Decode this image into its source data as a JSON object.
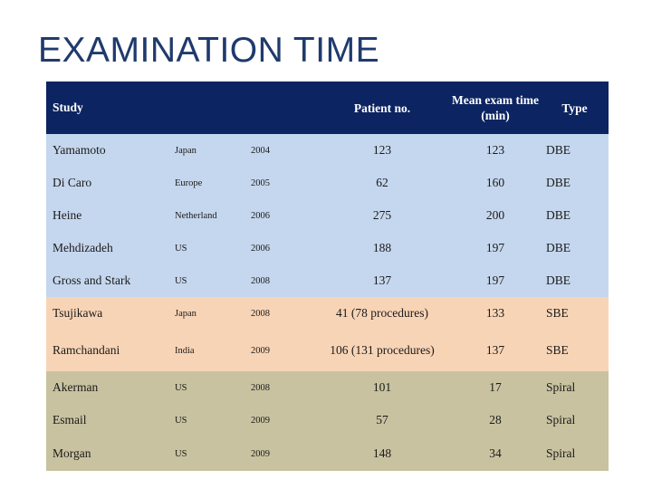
{
  "slide": {
    "title": "EXAMINATION TIME"
  },
  "table": {
    "headers": {
      "study": "Study",
      "patient_no": "Patient no.",
      "mean_exam_time": "Mean exam time (min)",
      "type": "Type"
    },
    "rows": [
      {
        "study": "Yamamoto",
        "country": "Japan",
        "year": "2004",
        "patients": "123",
        "mean_time": "123",
        "type": "DBE",
        "group": "dbe"
      },
      {
        "study": "Di Caro",
        "country": "Europe",
        "year": "2005",
        "patients": "62",
        "mean_time": "160",
        "type": "DBE",
        "group": "dbe"
      },
      {
        "study": "Heine",
        "country": "Netherland",
        "year": "2006",
        "patients": "275",
        "mean_time": "200",
        "type": "DBE",
        "group": "dbe"
      },
      {
        "study": "Mehdizadeh",
        "country": "US",
        "year": "2006",
        "patients": "188",
        "mean_time": "197",
        "type": "DBE",
        "group": "dbe"
      },
      {
        "study": "Gross and Stark",
        "country": "US",
        "year": "2008",
        "patients": "137",
        "mean_time": "197",
        "type": "DBE",
        "group": "dbe"
      },
      {
        "study": "Tsujikawa",
        "country": "Japan",
        "year": "2008",
        "patients": "41 (78 procedures)",
        "mean_time": "133",
        "type": "SBE",
        "group": "sbe"
      },
      {
        "study": "Ramchandani",
        "country": "India",
        "year": "2009",
        "patients": "106 (131 procedures)",
        "mean_time": "137",
        "type": "SBE",
        "group": "sbe"
      },
      {
        "study": "Akerman",
        "country": "US",
        "year": "2008",
        "patients": "101",
        "mean_time": "17",
        "type": "Spiral",
        "group": "spiral"
      },
      {
        "study": "Esmail",
        "country": "US",
        "year": "2009",
        "patients": "57",
        "mean_time": "28",
        "type": "Spiral",
        "group": "spiral"
      },
      {
        "study": "Morgan",
        "country": "US",
        "year": "2009",
        "patients": "148",
        "mean_time": "34",
        "type": "Spiral",
        "group": "spiral"
      }
    ]
  },
  "colors": {
    "header_bg": "#0c2461",
    "dbe_bg": "#c5d7ee",
    "sbe_bg": "#f8d4b6",
    "spiral_bg": "#c9c2a0",
    "title_color": "#1f3a6d"
  }
}
